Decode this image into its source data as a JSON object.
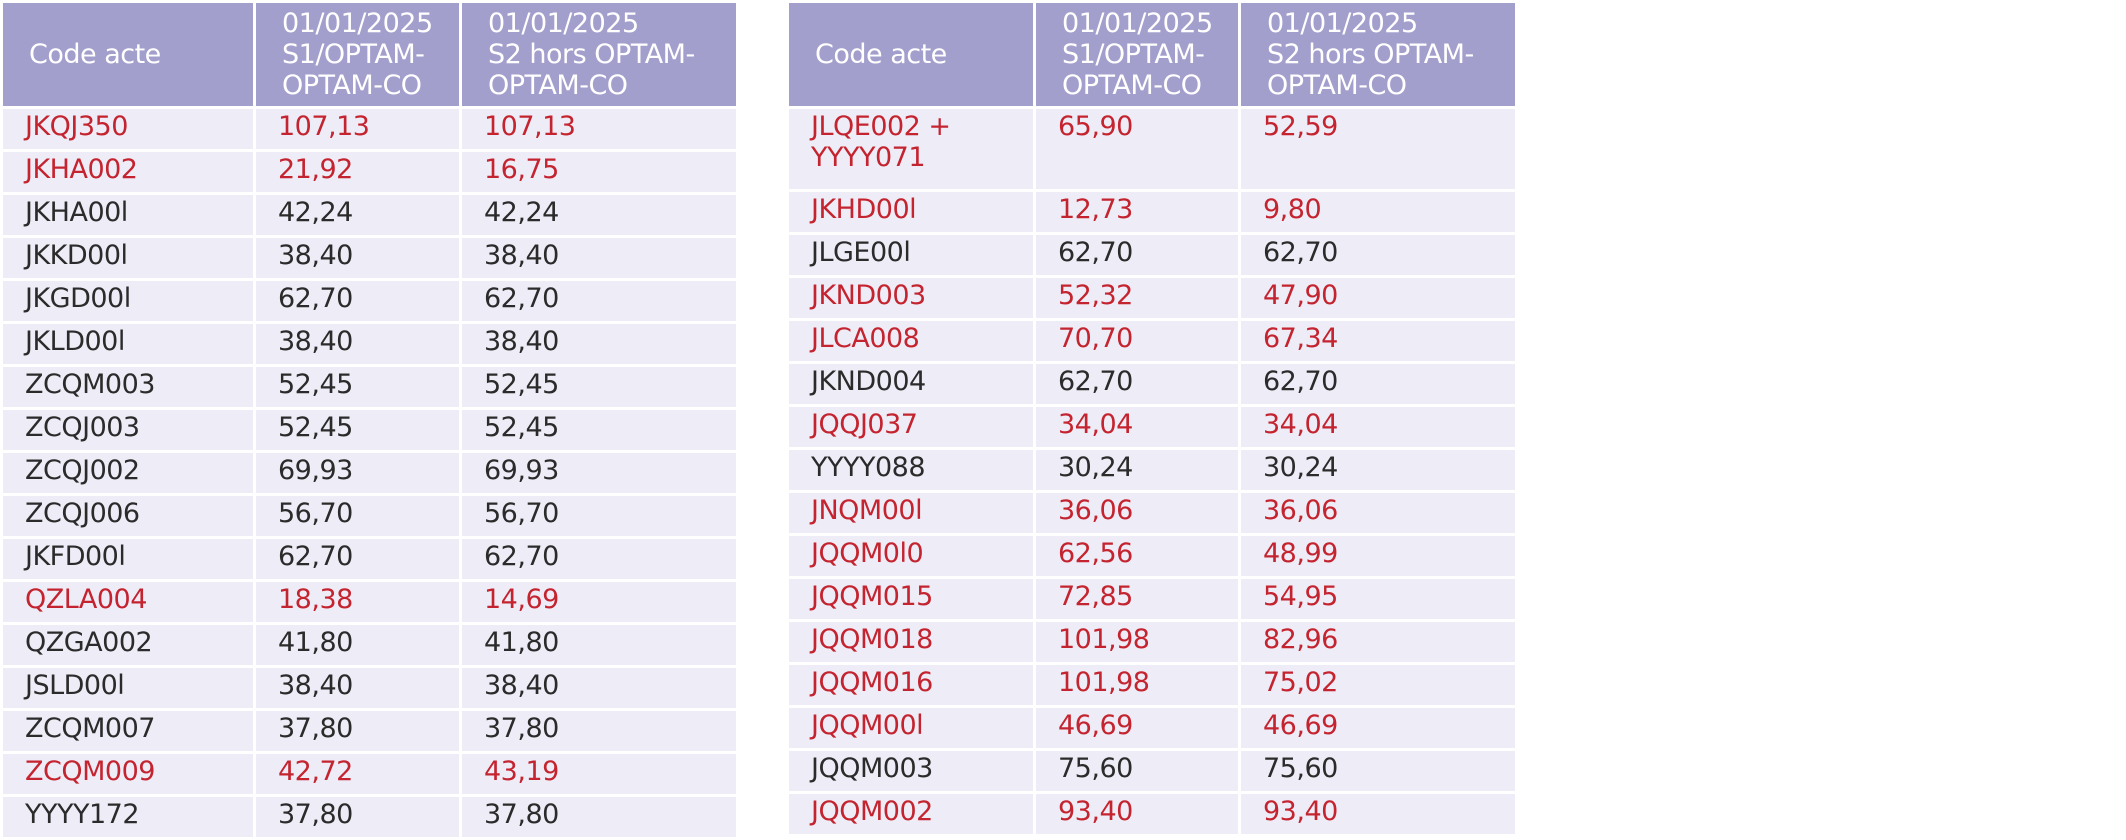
{
  "headers": {
    "code": "Code acte",
    "s1": [
      "01/01/2025",
      "S1/OPTAM-",
      "OPTAM-CO"
    ],
    "s2": [
      "01/01/2025",
      "S2 hors OPTAM-",
      "OPTAM-CO"
    ]
  },
  "colors": {
    "header_bg": "#a39fcd",
    "row_bg": "#eeedf7",
    "red_text": "#c4242f",
    "black_text": "#2b2b2b"
  },
  "left_table": [
    {
      "code": "JKQJ350",
      "s1": "107,13",
      "s2": "107,13",
      "red": true
    },
    {
      "code": "JKHA002",
      "s1": "21,92",
      "s2": "16,75",
      "red": true
    },
    {
      "code": "JKHA00l",
      "s1": "42,24",
      "s2": "42,24",
      "red": false
    },
    {
      "code": "JKKD00l",
      "s1": "38,40",
      "s2": "38,40",
      "red": false
    },
    {
      "code": "JKGD00l",
      "s1": "62,70",
      "s2": "62,70",
      "red": false
    },
    {
      "code": "JKLD00l",
      "s1": "38,40",
      "s2": "38,40",
      "red": false
    },
    {
      "code": "ZCQM003",
      "s1": "52,45",
      "s2": "52,45",
      "red": false
    },
    {
      "code": "ZCQJ003",
      "s1": "52,45",
      "s2": "52,45",
      "red": false
    },
    {
      "code": "ZCQJ002",
      "s1": "69,93",
      "s2": "69,93",
      "red": false
    },
    {
      "code": "ZCQJ006",
      "s1": "56,70",
      "s2": "56,70",
      "red": false
    },
    {
      "code": "JKFD00l",
      "s1": "62,70",
      "s2": "62,70",
      "red": false
    },
    {
      "code": "QZLA004",
      "s1": "18,38",
      "s2": "14,69",
      "red": true
    },
    {
      "code": "QZGA002",
      "s1": "41,80",
      "s2": "41,80",
      "red": false
    },
    {
      "code": "JSLD00l",
      "s1": "38,40",
      "s2": "38,40",
      "red": false
    },
    {
      "code": "ZCQM007",
      "s1": "37,80",
      "s2": "37,80",
      "red": false
    },
    {
      "code": "ZCQM009",
      "s1": "42,72",
      "s2": "43,19",
      "red": true
    },
    {
      "code": "YYYY172",
      "s1": "37,80",
      "s2": "37,80",
      "red": false
    }
  ],
  "right_table": [
    {
      "code": "JLQE002 +",
      "code2": "YYYY071",
      "s1": "65,90",
      "s2": "52,59",
      "red": true
    },
    {
      "code": "JKHD00l",
      "s1": "12,73",
      "s2": "9,80",
      "red": true
    },
    {
      "code": "JLGE00l",
      "s1": "62,70",
      "s2": "62,70",
      "red": false
    },
    {
      "code": "JKND003",
      "s1": "52,32",
      "s2": "47,90",
      "red": true
    },
    {
      "code": "JLCA008",
      "s1": "70,70",
      "s2": "67,34",
      "red": true
    },
    {
      "code": "JKND004",
      "s1": "62,70",
      "s2": "62,70",
      "red": false
    },
    {
      "code": "JQQJ037",
      "s1": "34,04",
      "s2": "34,04",
      "red": true
    },
    {
      "code": "YYYY088",
      "s1": "30,24",
      "s2": "30,24",
      "red": false
    },
    {
      "code": "JNQM00l",
      "s1": "36,06",
      "s2": "36,06",
      "red": true
    },
    {
      "code": "JQQM0l0",
      "s1": "62,56",
      "s2": "48,99",
      "red": true
    },
    {
      "code": "JQQM015",
      "s1": "72,85",
      "s2": "54,95",
      "red": true
    },
    {
      "code": "JQQM018",
      "s1": "101,98",
      "s2": "82,96",
      "red": true
    },
    {
      "code": "JQQM016",
      "s1": "101,98",
      "s2": "75,02",
      "red": true
    },
    {
      "code": "JQQM00l",
      "s1": "46,69",
      "s2": "46,69",
      "red": true
    },
    {
      "code": "JQQM003",
      "s1": "75,60",
      "s2": "75,60",
      "red": false
    },
    {
      "code": "JQQM002",
      "s1": "93,40",
      "s2": "93,40",
      "red": true
    }
  ]
}
